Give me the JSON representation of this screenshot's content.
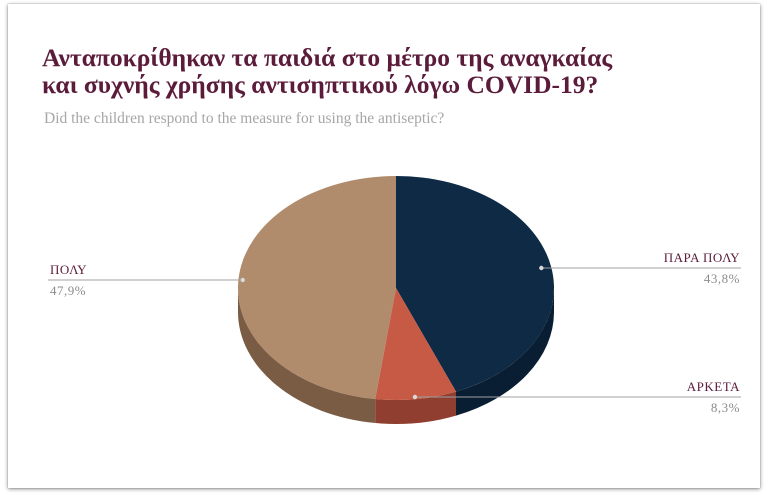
{
  "chart_data": {
    "type": "pie",
    "title_lines": [
      "Ανταποκρίθηκαν τα παιδιά στο μέτρο της αναγκαίας",
      "και συχνής χρήσης αντισηπτικού λόγω COVID-19?"
    ],
    "subtitle": "Did the children respond to the measure for using the antiseptic?",
    "slices": [
      {
        "label": "ΠΑΡΑ ΠΟΛΥ",
        "value": 43.8,
        "value_label": "43,8%",
        "color": "#0e2a45",
        "side_color": "#0a1e33",
        "label_side": "right"
      },
      {
        "label": "ΑΡΚΕΤΑ",
        "value": 8.3,
        "value_label": "8,3%",
        "color": "#c75a45",
        "side_color": "#8f3e2f",
        "label_side": "right"
      },
      {
        "label": "ΠΟΛΥ",
        "value": 47.9,
        "value_label": "47,9%",
        "color": "#b08b6c",
        "side_color": "#7a5c45",
        "label_side": "left"
      }
    ],
    "legend": "none",
    "style": "3d"
  }
}
